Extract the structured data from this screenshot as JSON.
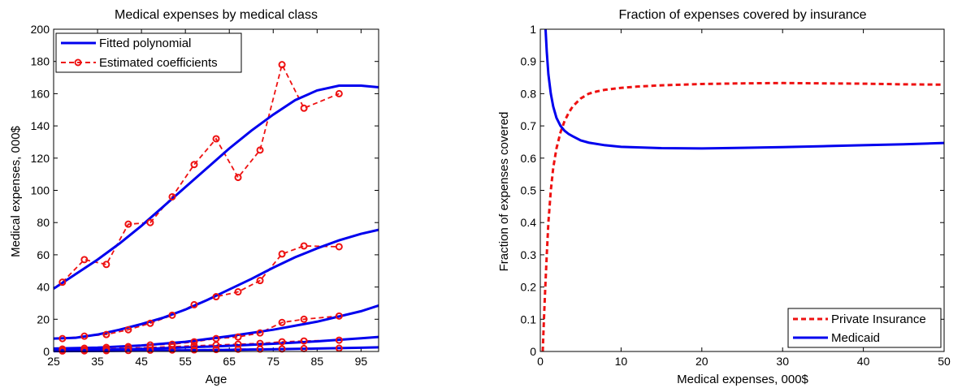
{
  "colors": {
    "blue": "#0000ee",
    "red": "#ee1111"
  },
  "chart_data": [
    {
      "type": "line",
      "title": "Medical expenses by medical class",
      "xlabel": "Age",
      "ylabel": "Medical expenses, 000$",
      "xlim": [
        25,
        99
      ],
      "ylim": [
        0,
        200
      ],
      "xticks": [
        25,
        35,
        45,
        55,
        65,
        75,
        85,
        95
      ],
      "yticks": [
        0,
        20,
        40,
        60,
        80,
        100,
        120,
        140,
        160,
        180,
        200
      ],
      "legend_position": "top-left",
      "legend": [
        "Fitted polynomial",
        "Estimated coefficients"
      ],
      "x_points": [
        27,
        32,
        37,
        42,
        47,
        52,
        57,
        62,
        67,
        72,
        77,
        82,
        90
      ],
      "classes": [
        {
          "fitted": {
            "x": [
              25,
              30,
              35,
              40,
              45,
              50,
              55,
              60,
              65,
              70,
              75,
              80,
              85,
              90,
              95,
              99
            ],
            "y": [
              39,
              48,
              57,
              67,
              78,
              90,
              102,
              114,
              126,
              137,
              147,
              156,
              162,
              165,
              165,
              164
            ]
          },
          "estimated": [
            43,
            57,
            54,
            79,
            80,
            96,
            116,
            132,
            108,
            125,
            178,
            151,
            160
          ]
        },
        {
          "fitted": {
            "x": [
              25,
              30,
              35,
              40,
              45,
              50,
              55,
              60,
              65,
              70,
              75,
              80,
              85,
              90,
              95,
              99
            ],
            "y": [
              8,
              8.5,
              10.5,
              13.5,
              17,
              21,
              26,
              32,
              38.5,
              45,
              52,
              58.5,
              64,
              69,
              73,
              75.5
            ]
          },
          "estimated": [
            8,
            9.5,
            10.5,
            13.5,
            17.5,
            22.5,
            29,
            34,
            37,
            44,
            60.5,
            65.5,
            65
          ]
        },
        {
          "fitted": {
            "x": [
              25,
              35,
              45,
              55,
              65,
              75,
              85,
              95,
              99
            ],
            "y": [
              1.8,
              2.4,
              3.7,
              6,
              9.5,
              13.5,
              18.5,
              25,
              28.5
            ]
          },
          "estimated": [
            1.5,
            2,
            2.5,
            3,
            4,
            4.5,
            6,
            8,
            9,
            11.5,
            18,
            20,
            22
          ]
        },
        {
          "fitted": {
            "x": [
              25,
              35,
              45,
              55,
              65,
              75,
              85,
              95,
              99
            ],
            "y": [
              0.6,
              1,
              1.6,
              2.5,
              3.5,
              4.8,
              6.3,
              8.2,
              9
            ]
          },
          "estimated": [
            0.8,
            1,
            1.5,
            2,
            2.5,
            3,
            3.5,
            4,
            4.5,
            5,
            6,
            6.5,
            7
          ]
        },
        {
          "fitted": {
            "x": [
              25,
              35,
              45,
              55,
              65,
              75,
              85,
              95,
              99
            ],
            "y": [
              0.2,
              0.3,
              0.5,
              0.7,
              1,
              1.4,
              1.8,
              2.3,
              2.6
            ]
          },
          "estimated": [
            0.3,
            0.4,
            0.5,
            0.6,
            0.8,
            0.9,
            1,
            1.2,
            1.4,
            1.5,
            1.6,
            1.8,
            2
          ]
        }
      ]
    },
    {
      "type": "line",
      "title": "Fraction of expenses covered by insurance",
      "xlabel": "Medical expenses, 000$",
      "ylabel": "Fraction of expenses covered",
      "xlim": [
        0,
        50
      ],
      "ylim": [
        0,
        1
      ],
      "xticks": [
        0,
        10,
        20,
        30,
        40,
        50
      ],
      "yticks": [
        0,
        0.1,
        0.2,
        0.3,
        0.4,
        0.5,
        0.6,
        0.7,
        0.8,
        0.9,
        1
      ],
      "legend_position": "bottom-right",
      "series": [
        {
          "name": "Private Insurance",
          "style": "dashed",
          "color": "#ee1111",
          "x": [
            0.3,
            0.45,
            0.6,
            0.8,
            1,
            1.3,
            1.6,
            2,
            2.5,
            3,
            3.5,
            4,
            5,
            6,
            7,
            8,
            10,
            12,
            15,
            20,
            25,
            30,
            35,
            40,
            45,
            50
          ],
          "y": [
            0,
            0.1,
            0.19,
            0.3,
            0.4,
            0.5,
            0.57,
            0.63,
            0.68,
            0.715,
            0.74,
            0.76,
            0.785,
            0.8,
            0.807,
            0.812,
            0.818,
            0.822,
            0.826,
            0.83,
            0.832,
            0.833,
            0.832,
            0.831,
            0.829,
            0.828
          ]
        },
        {
          "name": "Medicaid",
          "style": "solid",
          "color": "#0000ee",
          "x": [
            0.65,
            0.8,
            1,
            1.3,
            1.6,
            2,
            2.5,
            3,
            3.5,
            4,
            5,
            6,
            8,
            10,
            15,
            20,
            25,
            30,
            35,
            40,
            45,
            50
          ],
          "y": [
            1.0,
            0.93,
            0.86,
            0.8,
            0.76,
            0.725,
            0.7,
            0.685,
            0.675,
            0.668,
            0.655,
            0.648,
            0.64,
            0.635,
            0.631,
            0.63,
            0.632,
            0.634,
            0.637,
            0.64,
            0.643,
            0.647
          ]
        }
      ]
    }
  ]
}
